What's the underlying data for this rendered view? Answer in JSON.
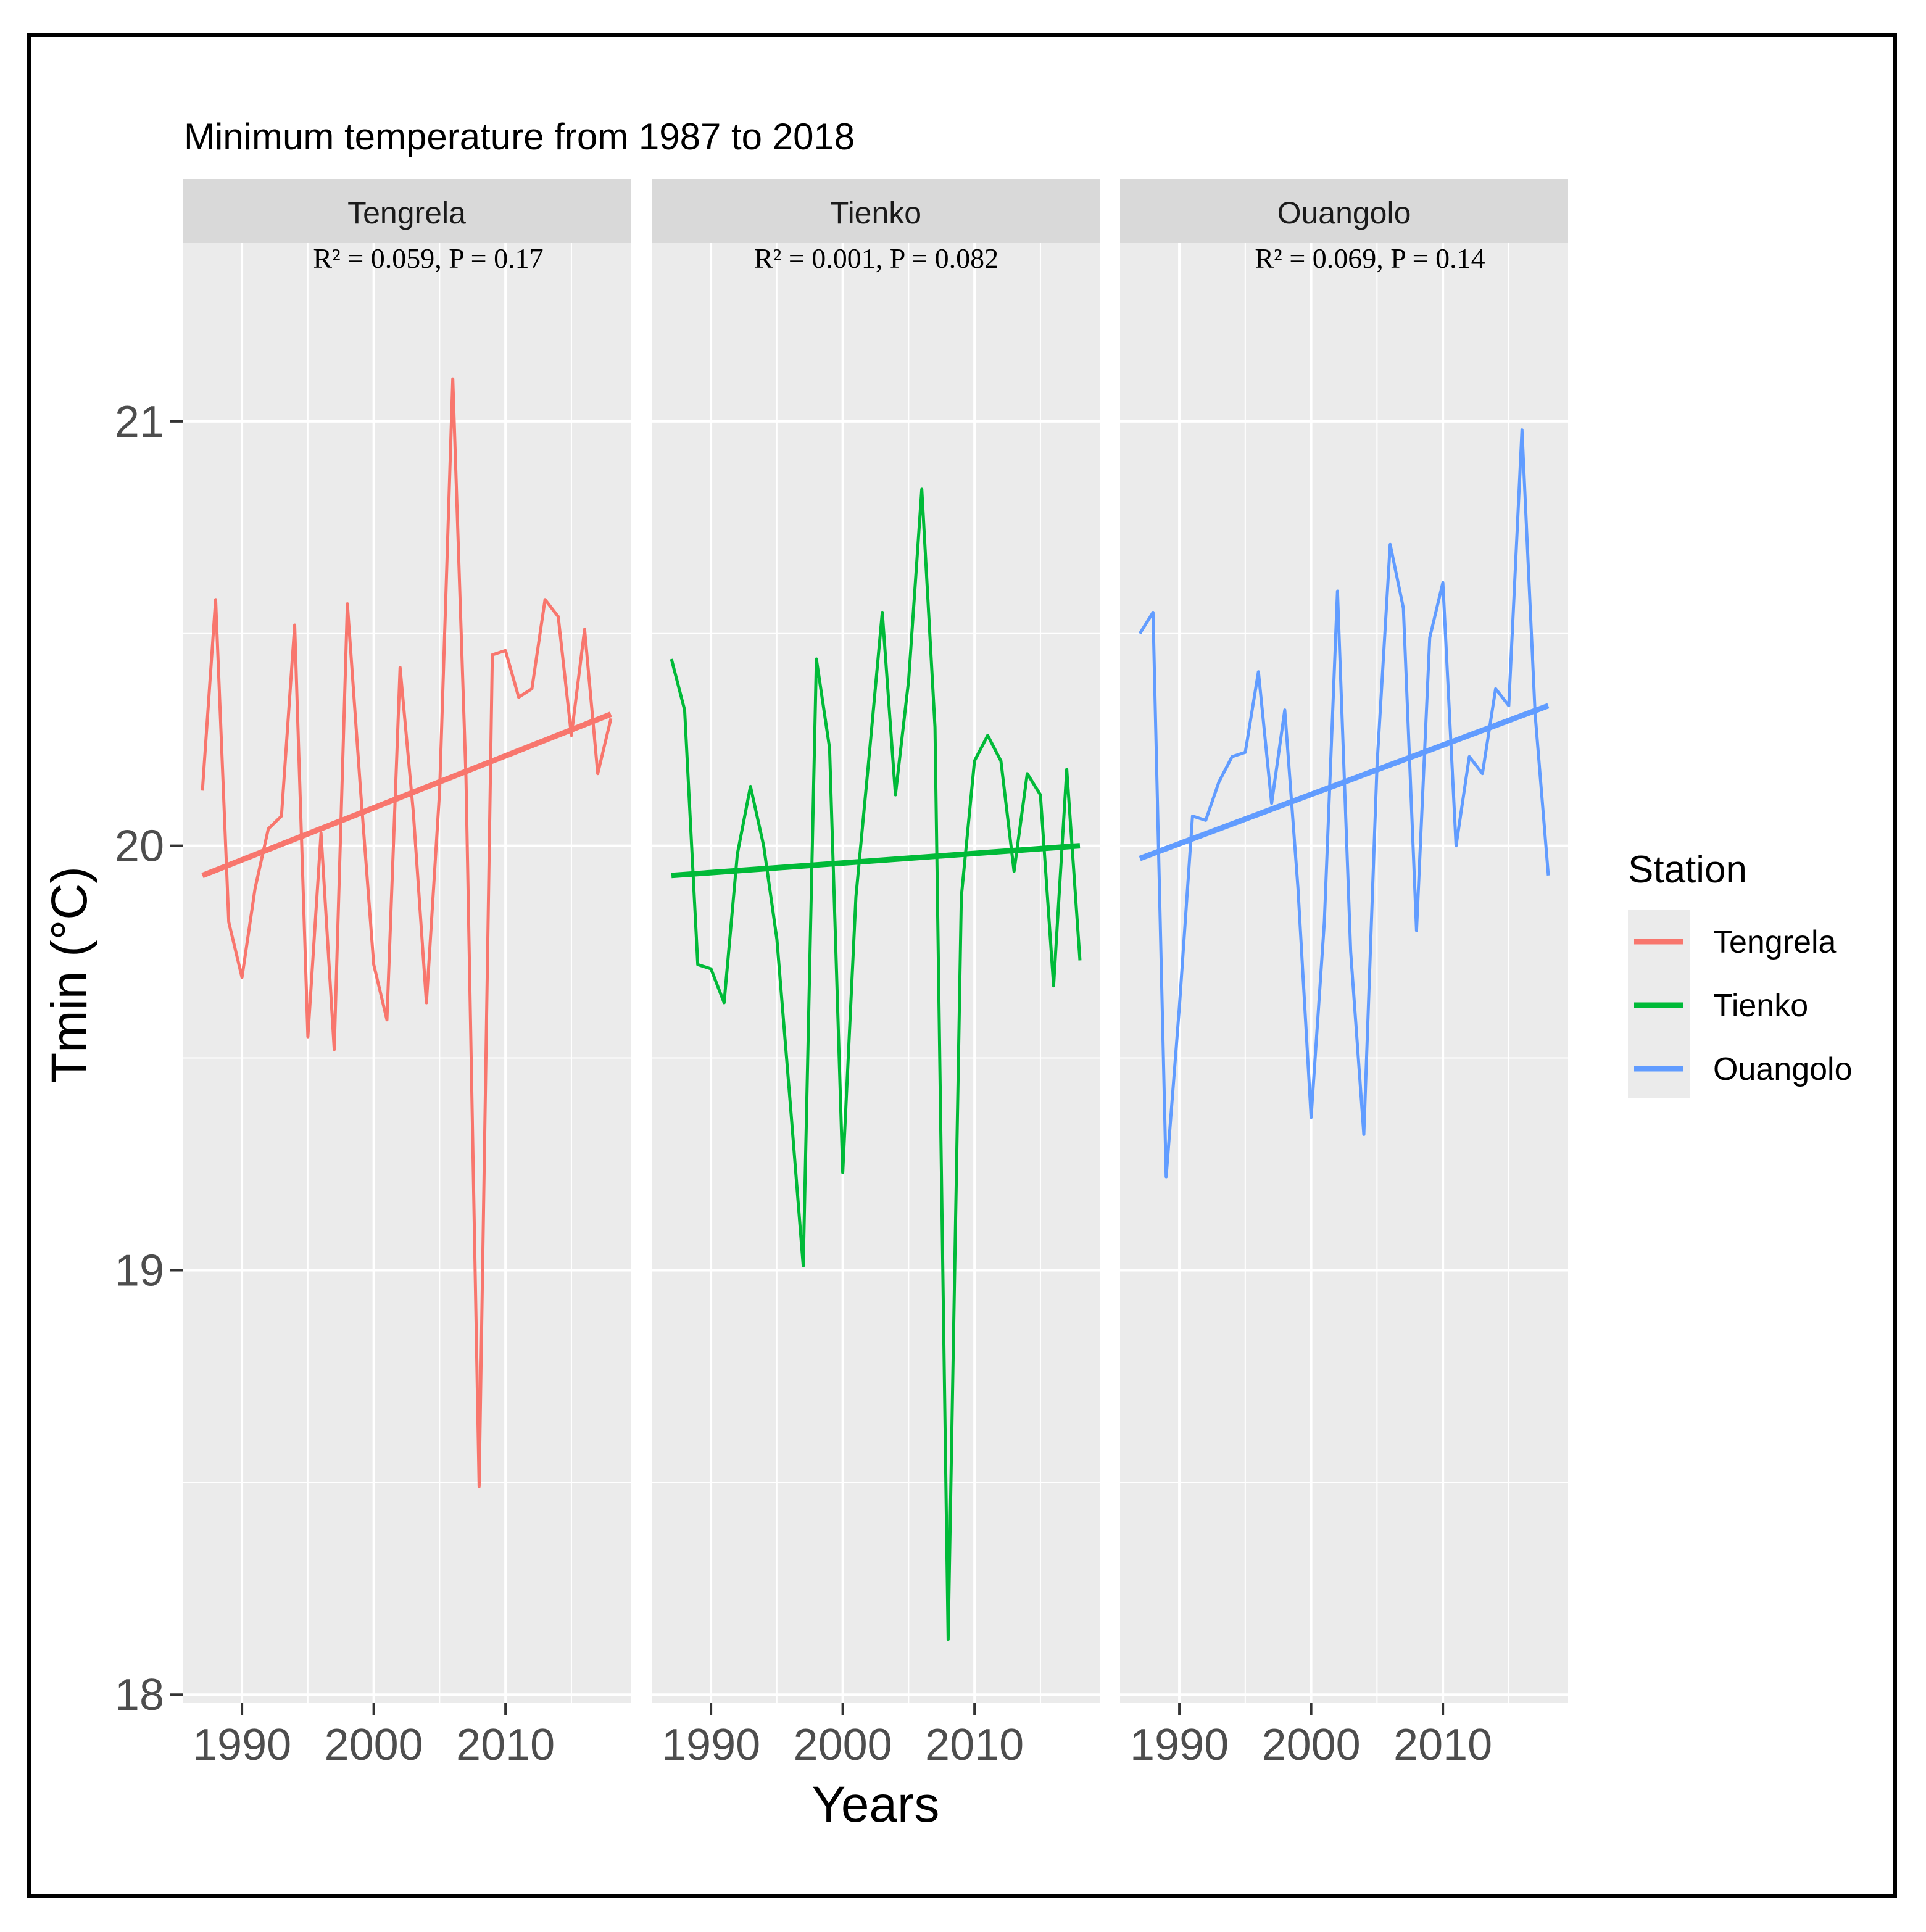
{
  "chart_data": {
    "type": "line",
    "title": "Minimum temperature from 1987 to 2018",
    "xlabel": "Years",
    "ylabel": "Tmin (°C)",
    "xlim": [
      1985.5,
      2019.5
    ],
    "ylim": [
      17.98,
      21.42
    ],
    "x_ticks": [
      1990,
      2000,
      2010
    ],
    "y_ticks": [
      18,
      19,
      20,
      21
    ],
    "legend": {
      "title": "Station",
      "position": "right"
    },
    "x": [
      1987,
      1988,
      1989,
      1990,
      1991,
      1992,
      1993,
      1994,
      1995,
      1996,
      1997,
      1998,
      1999,
      2000,
      2001,
      2002,
      2003,
      2004,
      2005,
      2006,
      2007,
      2008,
      2009,
      2010,
      2011,
      2012,
      2013,
      2014,
      2015,
      2016,
      2017,
      2018
    ],
    "panels": [
      {
        "name": "Tengrela",
        "color": "#F8766D",
        "stats": "R² = 0.059, P = 0.17",
        "values": [
          20.13,
          20.58,
          19.82,
          19.69,
          19.9,
          20.04,
          20.07,
          20.52,
          19.55,
          20.03,
          19.52,
          20.57,
          20.13,
          19.72,
          19.59,
          20.42,
          20.08,
          19.63,
          20.13,
          21.1,
          20.16,
          18.49,
          20.45,
          20.46,
          20.35,
          20.37,
          20.58,
          20.54,
          20.26,
          20.51,
          20.17,
          20.3
        ],
        "trend": {
          "start": [
            1987,
            19.93
          ],
          "end": [
            2018,
            20.31
          ]
        }
      },
      {
        "name": "Tienko",
        "color": "#00BA38",
        "stats": "R² = 0.001, P = 0.082",
        "values": [
          20.44,
          20.32,
          19.72,
          19.71,
          19.63,
          19.98,
          20.14,
          20.0,
          19.78,
          19.4,
          19.01,
          20.44,
          20.23,
          19.23,
          19.88,
          20.21,
          20.55,
          20.12,
          20.39,
          20.84,
          20.28,
          18.13,
          19.88,
          20.2,
          20.26,
          20.2,
          19.94,
          20.17,
          20.12,
          19.67,
          20.18,
          19.73
        ],
        "trend": {
          "start": [
            1987,
            19.93
          ],
          "end": [
            2018,
            20.0
          ]
        }
      },
      {
        "name": "Ouangolo",
        "color": "#619CFF",
        "stats": "R² = 0.069, P = 0.14",
        "values": [
          20.5,
          20.55,
          19.22,
          19.62,
          20.07,
          20.06,
          20.15,
          20.21,
          20.22,
          20.41,
          20.1,
          20.32,
          19.9,
          19.36,
          19.82,
          20.6,
          19.75,
          19.32,
          20.19,
          20.71,
          20.56,
          19.8,
          20.49,
          20.62,
          20.0,
          20.21,
          20.17,
          20.37,
          20.33,
          20.98,
          20.31,
          19.93
        ],
        "trend": {
          "start": [
            1987,
            19.97
          ],
          "end": [
            2018,
            20.33
          ]
        }
      }
    ]
  }
}
